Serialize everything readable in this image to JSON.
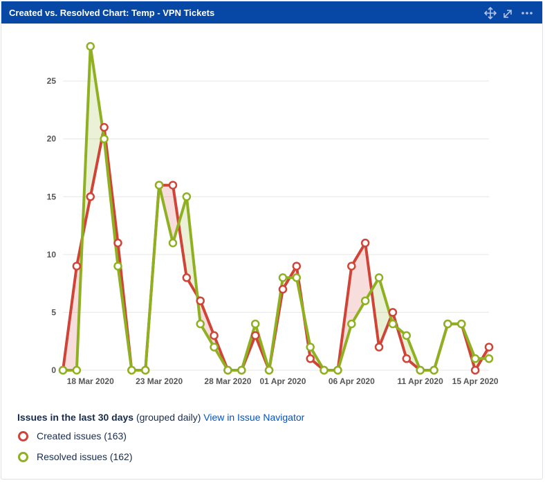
{
  "header": {
    "title": "Created vs. Resolved Chart: Temp - VPN Tickets"
  },
  "chart_data": {
    "type": "line",
    "categories": [
      null,
      null,
      "18 Mar 2020",
      null,
      null,
      null,
      null,
      "23 Mar 2020",
      null,
      null,
      null,
      null,
      "28 Mar 2020",
      null,
      null,
      null,
      "01 Apr 2020",
      null,
      null,
      null,
      null,
      "06 Apr 2020",
      null,
      null,
      null,
      null,
      "11 Apr 2020",
      null,
      null,
      null,
      "15 Apr 2020",
      null
    ],
    "series": [
      {
        "name": "Created issues (163)",
        "color": "#d04437",
        "values": [
          0,
          9,
          15,
          21,
          11,
          0,
          0,
          16,
          16,
          8,
          6,
          3,
          0,
          0,
          3,
          0,
          7,
          9,
          1,
          0,
          0,
          9,
          11,
          2,
          5,
          1,
          0,
          0,
          4,
          4,
          0,
          2
        ]
      },
      {
        "name": "Resolved issues (162)",
        "color": "#8eb021",
        "values": [
          0,
          0,
          28,
          20,
          9,
          0,
          0,
          16,
          11,
          15,
          4,
          2,
          0,
          0,
          4,
          0,
          8,
          8,
          2,
          0,
          0,
          4,
          6,
          8,
          4,
          3,
          0,
          0,
          4,
          4,
          1,
          1
        ]
      }
    ],
    "ylim": [
      0,
      28
    ],
    "yticks": [
      0,
      5,
      10,
      15,
      20,
      25
    ],
    "grid": true
  },
  "summary": {
    "period": "Issues in the last 30 days",
    "grouping": "(grouped daily)",
    "link": "View in Issue Navigator"
  }
}
